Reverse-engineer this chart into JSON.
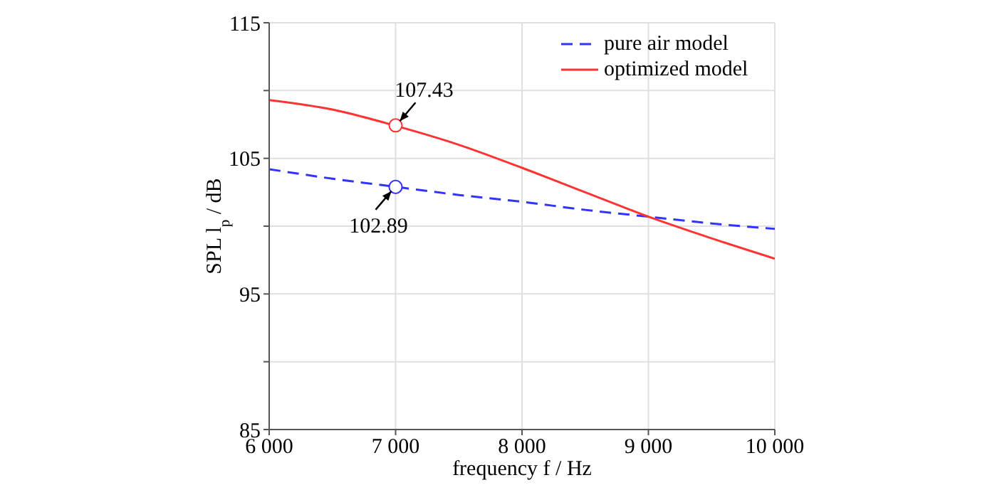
{
  "chart_data": {
    "type": "line",
    "xlabel": "frequency f / Hz",
    "ylabel": "SPL l$_{p}$ / dB",
    "xlim": [
      6000,
      10000
    ],
    "xticks": [
      {
        "value": 6000,
        "label": "6 000"
      },
      {
        "value": 7000,
        "label": "7 000"
      },
      {
        "value": 8000,
        "label": "8 000"
      },
      {
        "value": 9000,
        "label": "9 000"
      },
      {
        "value": 10000,
        "label": "10 000"
      }
    ],
    "ylim": [
      85,
      115
    ],
    "yticks": [
      85,
      {
        "value": 90,
        "label": null
      },
      95,
      {
        "value": 100,
        "label": null
      },
      105,
      {
        "value": 110,
        "label": null
      },
      115
    ],
    "grid": true,
    "legend": "top right",
    "series": [
      {
        "name": "pure air model",
        "color": "#3333ff",
        "line_style": "dashed",
        "marker": "none",
        "x": [
          6000,
          6500,
          7000,
          7500,
          8000,
          8500,
          9000,
          9500,
          10000
        ],
        "values": [
          104.2,
          103.5,
          102.9,
          102.3,
          101.8,
          101.2,
          100.7,
          100.2,
          99.8
        ]
      },
      {
        "name": "optimized model",
        "color": "#ff3333",
        "line_style": "solid",
        "marker": "none",
        "x": [
          6000,
          6500,
          7000,
          7500,
          8000,
          8500,
          9000,
          9500,
          10000
        ],
        "values": [
          109.3,
          108.6,
          107.4,
          106,
          104.3,
          102.5,
          100.7,
          99.1,
          97.6
        ]
      },
      {
        "type": "scatter",
        "color": "#ff3333",
        "marker": "circle",
        "x": [
          7000
        ],
        "values": [
          107.43
        ]
      },
      {
        "type": "scatter",
        "color": "#3333ff",
        "marker": "circle",
        "x": [
          7000
        ],
        "values": [
          102.89
        ]
      }
    ],
    "annotations": [
      {
        "text": "107.43",
        "x": 7000,
        "y": 107.43
      },
      {
        "text": "102.89",
        "x": 7000,
        "y": 102.89
      }
    ]
  }
}
